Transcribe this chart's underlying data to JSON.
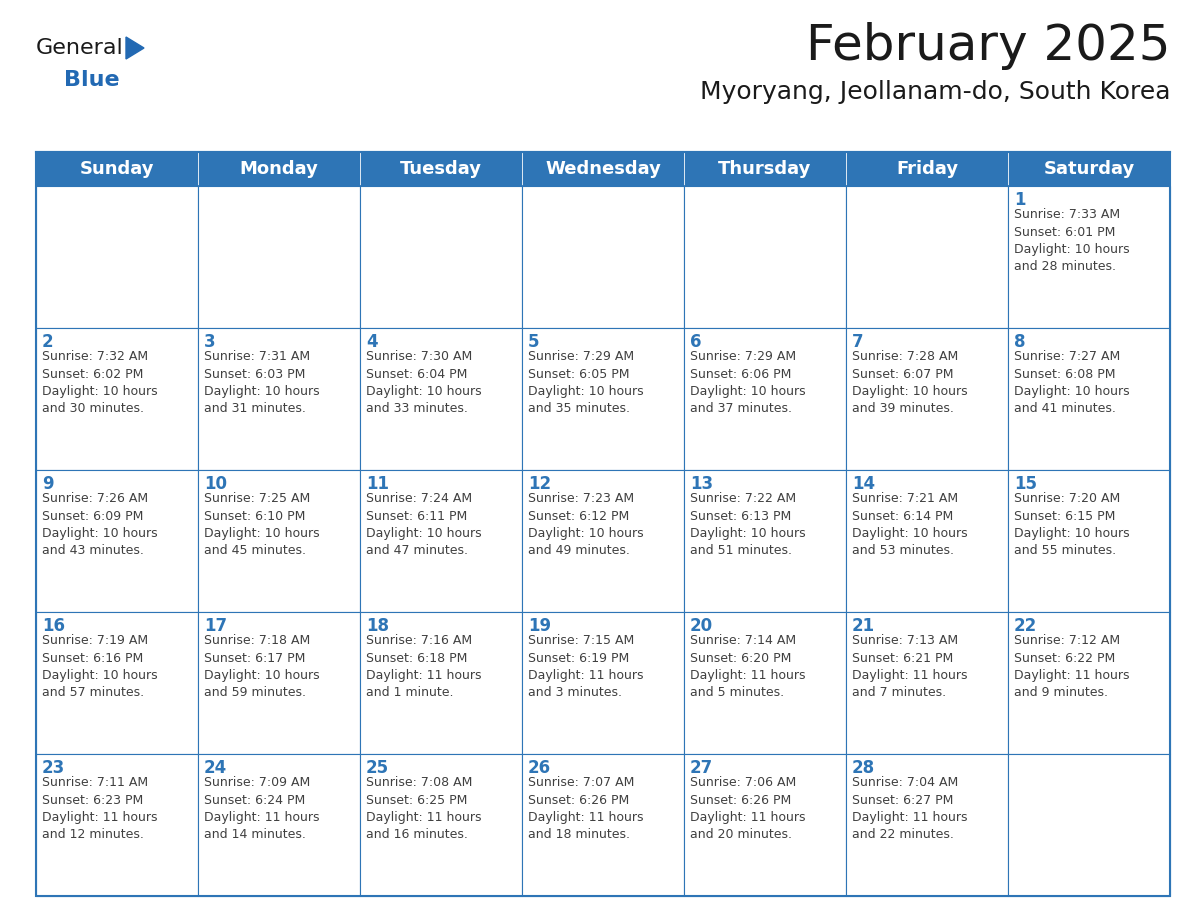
{
  "title": "February 2025",
  "subtitle": "Myoryang, Jeollanam-do, South Korea",
  "header_bg": "#2E75B6",
  "header_text_color": "#FFFFFF",
  "cell_bg": "#FFFFFF",
  "border_color": "#2E75B6",
  "day_number_color": "#2E75B6",
  "info_text_color": "#404040",
  "days_of_week": [
    "Sunday",
    "Monday",
    "Tuesday",
    "Wednesday",
    "Thursday",
    "Friday",
    "Saturday"
  ],
  "weeks": [
    [
      {
        "day": null,
        "info": ""
      },
      {
        "day": null,
        "info": ""
      },
      {
        "day": null,
        "info": ""
      },
      {
        "day": null,
        "info": ""
      },
      {
        "day": null,
        "info": ""
      },
      {
        "day": null,
        "info": ""
      },
      {
        "day": 1,
        "info": "Sunrise: 7:33 AM\nSunset: 6:01 PM\nDaylight: 10 hours\nand 28 minutes."
      }
    ],
    [
      {
        "day": 2,
        "info": "Sunrise: 7:32 AM\nSunset: 6:02 PM\nDaylight: 10 hours\nand 30 minutes."
      },
      {
        "day": 3,
        "info": "Sunrise: 7:31 AM\nSunset: 6:03 PM\nDaylight: 10 hours\nand 31 minutes."
      },
      {
        "day": 4,
        "info": "Sunrise: 7:30 AM\nSunset: 6:04 PM\nDaylight: 10 hours\nand 33 minutes."
      },
      {
        "day": 5,
        "info": "Sunrise: 7:29 AM\nSunset: 6:05 PM\nDaylight: 10 hours\nand 35 minutes."
      },
      {
        "day": 6,
        "info": "Sunrise: 7:29 AM\nSunset: 6:06 PM\nDaylight: 10 hours\nand 37 minutes."
      },
      {
        "day": 7,
        "info": "Sunrise: 7:28 AM\nSunset: 6:07 PM\nDaylight: 10 hours\nand 39 minutes."
      },
      {
        "day": 8,
        "info": "Sunrise: 7:27 AM\nSunset: 6:08 PM\nDaylight: 10 hours\nand 41 minutes."
      }
    ],
    [
      {
        "day": 9,
        "info": "Sunrise: 7:26 AM\nSunset: 6:09 PM\nDaylight: 10 hours\nand 43 minutes."
      },
      {
        "day": 10,
        "info": "Sunrise: 7:25 AM\nSunset: 6:10 PM\nDaylight: 10 hours\nand 45 minutes."
      },
      {
        "day": 11,
        "info": "Sunrise: 7:24 AM\nSunset: 6:11 PM\nDaylight: 10 hours\nand 47 minutes."
      },
      {
        "day": 12,
        "info": "Sunrise: 7:23 AM\nSunset: 6:12 PM\nDaylight: 10 hours\nand 49 minutes."
      },
      {
        "day": 13,
        "info": "Sunrise: 7:22 AM\nSunset: 6:13 PM\nDaylight: 10 hours\nand 51 minutes."
      },
      {
        "day": 14,
        "info": "Sunrise: 7:21 AM\nSunset: 6:14 PM\nDaylight: 10 hours\nand 53 minutes."
      },
      {
        "day": 15,
        "info": "Sunrise: 7:20 AM\nSunset: 6:15 PM\nDaylight: 10 hours\nand 55 minutes."
      }
    ],
    [
      {
        "day": 16,
        "info": "Sunrise: 7:19 AM\nSunset: 6:16 PM\nDaylight: 10 hours\nand 57 minutes."
      },
      {
        "day": 17,
        "info": "Sunrise: 7:18 AM\nSunset: 6:17 PM\nDaylight: 10 hours\nand 59 minutes."
      },
      {
        "day": 18,
        "info": "Sunrise: 7:16 AM\nSunset: 6:18 PM\nDaylight: 11 hours\nand 1 minute."
      },
      {
        "day": 19,
        "info": "Sunrise: 7:15 AM\nSunset: 6:19 PM\nDaylight: 11 hours\nand 3 minutes."
      },
      {
        "day": 20,
        "info": "Sunrise: 7:14 AM\nSunset: 6:20 PM\nDaylight: 11 hours\nand 5 minutes."
      },
      {
        "day": 21,
        "info": "Sunrise: 7:13 AM\nSunset: 6:21 PM\nDaylight: 11 hours\nand 7 minutes."
      },
      {
        "day": 22,
        "info": "Sunrise: 7:12 AM\nSunset: 6:22 PM\nDaylight: 11 hours\nand 9 minutes."
      }
    ],
    [
      {
        "day": 23,
        "info": "Sunrise: 7:11 AM\nSunset: 6:23 PM\nDaylight: 11 hours\nand 12 minutes."
      },
      {
        "day": 24,
        "info": "Sunrise: 7:09 AM\nSunset: 6:24 PM\nDaylight: 11 hours\nand 14 minutes."
      },
      {
        "day": 25,
        "info": "Sunrise: 7:08 AM\nSunset: 6:25 PM\nDaylight: 11 hours\nand 16 minutes."
      },
      {
        "day": 26,
        "info": "Sunrise: 7:07 AM\nSunset: 6:26 PM\nDaylight: 11 hours\nand 18 minutes."
      },
      {
        "day": 27,
        "info": "Sunrise: 7:06 AM\nSunset: 6:26 PM\nDaylight: 11 hours\nand 20 minutes."
      },
      {
        "day": 28,
        "info": "Sunrise: 7:04 AM\nSunset: 6:27 PM\nDaylight: 11 hours\nand 22 minutes."
      },
      {
        "day": null,
        "info": ""
      }
    ]
  ],
  "logo_color_general": "#1a1a1a",
  "logo_color_blue": "#2269B3",
  "logo_triangle_color": "#2269B3",
  "title_fontsize": 36,
  "subtitle_fontsize": 18,
  "header_fontsize": 13,
  "day_num_fontsize": 12,
  "info_fontsize": 9,
  "logo_general_fontsize": 16,
  "logo_blue_fontsize": 16
}
